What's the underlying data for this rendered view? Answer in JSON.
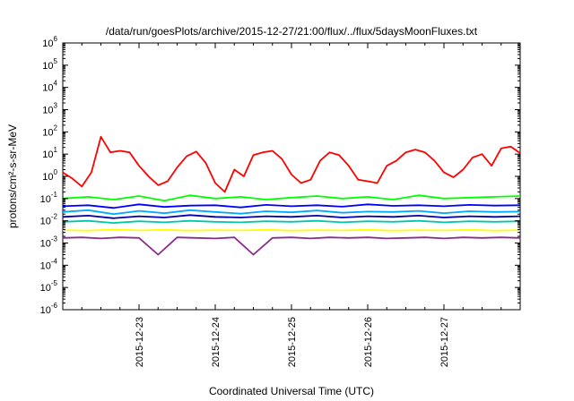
{
  "chart_data": {
    "type": "line",
    "title": "/data/run/goesPlots/archive/2015-12-27/21:00/flux/../flux/5daysMoonFluxes.txt",
    "xlabel": "Coordinated Universal Time (UTC)",
    "ylabel": "protons/cm²-s-sr-MeV",
    "yscale": "log",
    "ylim": [
      1e-06,
      1000000.0
    ],
    "xlim": [
      "2015-12-22T00:00",
      "2015-12-28T00:00"
    ],
    "x_ticks": [
      "2015-12-23",
      "2015-12-24",
      "2015-12-25",
      "2015-12-26",
      "2015-12-27"
    ],
    "y_ticks": [
      {
        "value": 1e-06,
        "base": "10",
        "exp": "-6"
      },
      {
        "value": 1e-05,
        "base": "10",
        "exp": "-5"
      },
      {
        "value": 0.0001,
        "base": "10",
        "exp": "-4"
      },
      {
        "value": 0.001,
        "base": "10",
        "exp": "-3"
      },
      {
        "value": 0.01,
        "base": "10",
        "exp": "-2"
      },
      {
        "value": 0.1,
        "base": "10",
        "exp": "-1"
      },
      {
        "value": 1,
        "base": "10",
        "exp": "0"
      },
      {
        "value": 10,
        "base": "10",
        "exp": "1"
      },
      {
        "value": 100,
        "base": "10",
        "exp": "2"
      },
      {
        "value": 1000,
        "base": "10",
        "exp": "3"
      },
      {
        "value": 10000,
        "base": "10",
        "exp": "4"
      },
      {
        "value": 100000,
        "base": "10",
        "exp": "5"
      },
      {
        "value": 1000000,
        "base": "10",
        "exp": "6"
      }
    ],
    "grid": false,
    "legend": "none",
    "series": [
      {
        "color": "#ff0000",
        "x_hours": [
          0,
          3,
          6,
          9,
          12,
          15,
          18,
          21,
          24,
          27,
          30,
          33,
          36,
          39,
          42,
          45,
          48,
          51,
          54,
          57,
          60,
          63,
          66,
          69,
          72,
          75,
          78,
          81,
          84,
          87,
          90,
          93,
          96,
          99,
          102,
          105,
          108,
          111,
          114,
          117,
          120,
          123,
          126,
          129,
          132,
          135,
          138,
          141,
          144
        ],
        "values": [
          1.5,
          0.8,
          0.35,
          1.5,
          60,
          12,
          14,
          12,
          3,
          1,
          0.4,
          0.6,
          2.5,
          8,
          13,
          4,
          0.5,
          0.2,
          2,
          1,
          9,
          12,
          14,
          6,
          1.2,
          0.5,
          0.7,
          5,
          12,
          9,
          3,
          0.7,
          0.6,
          0.5,
          3,
          5,
          12,
          16,
          12,
          5,
          1.5,
          0.9,
          2,
          7,
          10,
          3,
          18,
          22,
          11
        ]
      },
      {
        "color": "#00ff00",
        "x_hours": [
          0,
          8,
          16,
          24,
          32,
          40,
          48,
          56,
          64,
          72,
          80,
          88,
          96,
          104,
          112,
          120,
          128,
          136,
          144
        ],
        "values": [
          0.1,
          0.12,
          0.09,
          0.13,
          0.08,
          0.14,
          0.1,
          0.12,
          0.09,
          0.11,
          0.13,
          0.1,
          0.12,
          0.09,
          0.14,
          0.1,
          0.11,
          0.12,
          0.13
        ]
      },
      {
        "color": "#0000ff",
        "x_hours": [
          0,
          8,
          16,
          24,
          32,
          40,
          48,
          56,
          64,
          72,
          80,
          88,
          96,
          104,
          112,
          120,
          128,
          136,
          144
        ],
        "values": [
          0.045,
          0.05,
          0.038,
          0.055,
          0.042,
          0.048,
          0.05,
          0.04,
          0.052,
          0.045,
          0.05,
          0.043,
          0.055,
          0.047,
          0.05,
          0.045,
          0.052,
          0.048,
          0.05
        ]
      },
      {
        "color": "#00aaff",
        "x_hours": [
          0,
          8,
          16,
          24,
          32,
          40,
          48,
          56,
          64,
          72,
          80,
          88,
          96,
          104,
          112,
          120,
          128,
          136,
          144
        ],
        "values": [
          0.025,
          0.03,
          0.02,
          0.028,
          0.022,
          0.03,
          0.025,
          0.021,
          0.027,
          0.024,
          0.029,
          0.023,
          0.026,
          0.025,
          0.028,
          0.022,
          0.027,
          0.025,
          0.026
        ]
      },
      {
        "color": "#0000aa",
        "x_hours": [
          0,
          8,
          16,
          24,
          32,
          40,
          48,
          56,
          64,
          72,
          80,
          88,
          96,
          104,
          112,
          120,
          128,
          136,
          144
        ],
        "values": [
          0.015,
          0.017,
          0.013,
          0.016,
          0.014,
          0.018,
          0.015,
          0.014,
          0.016,
          0.015,
          0.017,
          0.014,
          0.016,
          0.015,
          0.017,
          0.014,
          0.016,
          0.015,
          0.016
        ]
      },
      {
        "color": "#00c8aa",
        "x_hours": [
          0,
          8,
          16,
          24,
          32,
          40,
          48,
          56,
          64,
          72,
          80,
          88,
          96,
          104,
          112,
          120,
          128,
          136,
          144
        ],
        "values": [
          0.009,
          0.01,
          0.008,
          0.0095,
          0.0085,
          0.01,
          0.009,
          0.0085,
          0.0095,
          0.009,
          0.01,
          0.0085,
          0.0095,
          0.009,
          0.01,
          0.0085,
          0.0095,
          0.009,
          0.0095
        ]
      },
      {
        "color": "#ffff00",
        "x_hours": [
          0,
          8,
          16,
          24,
          32,
          40,
          48,
          56,
          64,
          72,
          80,
          88,
          96,
          104,
          112,
          120,
          128,
          136,
          144
        ],
        "values": [
          0.0038,
          0.0036,
          0.004,
          0.0037,
          0.0039,
          0.0036,
          0.0038,
          0.0037,
          0.0039,
          0.0036,
          0.0038,
          0.0037,
          0.0039,
          0.0036,
          0.0038,
          0.0037,
          0.0039,
          0.0036,
          0.0038
        ]
      },
      {
        "color": "#8b2b8b",
        "x_hours": [
          0,
          6,
          12,
          18,
          24,
          30,
          36,
          42,
          48,
          54,
          60,
          66,
          72,
          78,
          84,
          90,
          96,
          102,
          108,
          114,
          120,
          126,
          132,
          138,
          144
        ],
        "values": [
          0.0017,
          0.0018,
          0.0016,
          0.0018,
          0.0017,
          0.0003,
          0.0018,
          0.0017,
          0.0016,
          0.0018,
          0.0003,
          0.0017,
          0.0018,
          0.0016,
          0.0018,
          0.0017,
          0.0018,
          0.0016,
          0.0017,
          0.0018,
          0.0016,
          0.0018,
          0.0017,
          0.0018,
          0.0017
        ]
      }
    ]
  }
}
